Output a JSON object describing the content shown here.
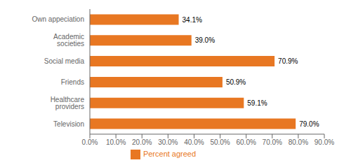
{
  "chart_data": {
    "type": "bar",
    "orientation": "horizontal",
    "categories": [
      "Television",
      "Healthcare providers",
      "Friends",
      "Social media",
      "Academic societies",
      "Own appeciation"
    ],
    "series": [
      {
        "name": "Percent agreed",
        "color": "#E87722",
        "values": [
          79.0,
          59.1,
          50.9,
          70.9,
          39.0,
          34.1
        ],
        "value_labels": [
          "79.0%",
          "59.1%",
          "50.9%",
          "70.9%",
          "39.0%",
          "34.1%"
        ]
      }
    ],
    "data_labels": true,
    "legend": "bottom",
    "xlim": [
      0,
      90
    ],
    "xticks": [
      {
        "value": 0,
        "label": "0.0%"
      },
      {
        "value": 10,
        "label": "10.0%"
      },
      {
        "value": 20,
        "label": "20.0%"
      },
      {
        "value": 30,
        "label": "30.0%"
      },
      {
        "value": 40,
        "label": "40.0%"
      },
      {
        "value": 50,
        "label": "50.0%"
      },
      {
        "value": 60,
        "label": "60.0%"
      },
      {
        "value": 70,
        "label": "70.0%"
      },
      {
        "value": 80,
        "label": "80.0%"
      },
      {
        "value": 90,
        "label": "90.0%"
      }
    ],
    "grid": false
  }
}
